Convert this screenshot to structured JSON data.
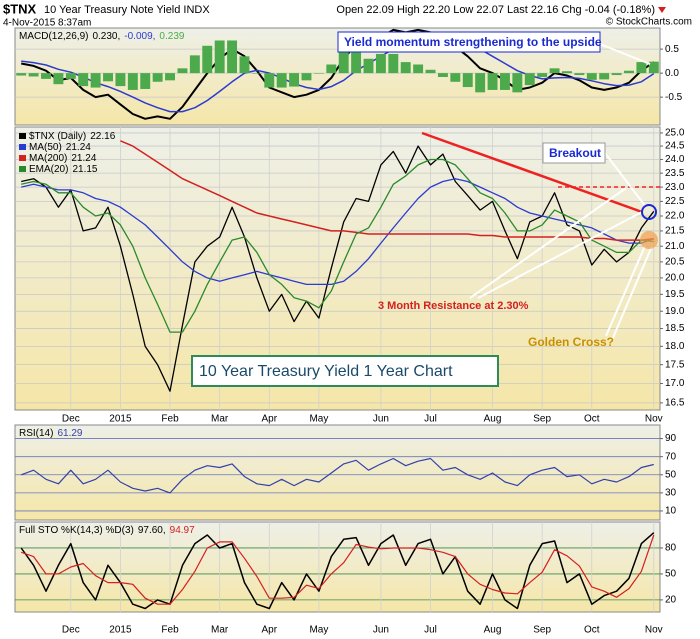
{
  "header": {
    "symbol": "$TNX",
    "name": "10 Year Treasury Note Yield INDX",
    "date": "4-Nov-2015 8:37am",
    "quote": "Open 22.09 High 22.20 Low 22.07 Last 22.16 Chg -0.04 (-0.18%)",
    "credit": "© StockCharts.com"
  },
  "chart_data": [
    {
      "type": "line",
      "title": "MACD(12,26,9)",
      "legend": [
        "0.230,",
        "-0.009,",
        "0.239"
      ],
      "annotation": "Yield momentum strengthening to the upside",
      "ylim": [
        -1.08,
        0.94
      ],
      "yticks": [
        {
          "value": -0.5,
          "label": "-0.5"
        },
        {
          "value": 0,
          "label": "0.0"
        },
        0.5
      ],
      "grid": true,
      "series": [
        {
          "color": "#000000",
          "values": [
            0.2,
            0.15,
            0.05,
            -0.15,
            -0.1,
            -0.35,
            -0.5,
            -0.45,
            -0.65,
            -0.85,
            -0.95,
            -0.9,
            -0.95,
            -0.7,
            -0.35,
            0.0,
            0.3,
            0.5,
            0.35,
            0.05,
            -0.3,
            -0.4,
            -0.5,
            -0.45,
            -0.35,
            -0.1,
            0.3,
            0.6,
            0.5,
            0.75,
            0.9,
            0.85,
            0.9,
            0.85,
            0.7,
            0.55,
            0.35,
            0.1,
            0.0,
            -0.15,
            -0.35,
            -0.3,
            -0.2,
            0.0,
            -0.05,
            -0.15,
            -0.3,
            -0.35,
            -0.3,
            -0.2,
            0.05,
            0.23
          ]
        },
        {
          "color": "#2b3bd0",
          "values": [
            0.25,
            0.22,
            0.17,
            0.08,
            0.02,
            -0.08,
            -0.2,
            -0.28,
            -0.38,
            -0.5,
            -0.62,
            -0.72,
            -0.8,
            -0.8,
            -0.72,
            -0.57,
            -0.38,
            -0.18,
            0.0,
            0.06,
            0.0,
            -0.1,
            -0.22,
            -0.3,
            -0.34,
            -0.28,
            -0.15,
            0.05,
            0.2,
            0.35,
            0.5,
            0.62,
            0.72,
            0.78,
            0.78,
            0.73,
            0.64,
            0.5,
            0.35,
            0.2,
            0.05,
            -0.05,
            -0.12,
            -0.1,
            -0.09,
            -0.11,
            -0.16,
            -0.22,
            -0.26,
            -0.25,
            -0.18,
            -0.009
          ]
        },
        {
          "color": "#4caa4c",
          "style": "bar",
          "values": [
            -0.05,
            -0.07,
            -0.12,
            -0.23,
            -0.12,
            -0.27,
            -0.3,
            -0.17,
            -0.27,
            -0.35,
            -0.33,
            -0.18,
            -0.15,
            0.1,
            0.37,
            0.57,
            0.68,
            0.68,
            0.35,
            -0.01,
            -0.3,
            -0.3,
            -0.28,
            -0.15,
            -0.01,
            0.18,
            0.45,
            0.55,
            0.3,
            0.4,
            0.4,
            0.23,
            0.18,
            0.07,
            -0.08,
            -0.18,
            -0.29,
            -0.4,
            -0.35,
            -0.35,
            -0.4,
            -0.25,
            -0.08,
            0.1,
            0.04,
            -0.04,
            -0.14,
            -0.13,
            -0.04,
            0.05,
            0.23,
            0.239
          ]
        }
      ]
    },
    {
      "type": "line",
      "log_scale": true,
      "annotations": {
        "breakout": "Breakout",
        "resistance": "3 Month Resistance at 2.30%",
        "golden_cross": "Golden Cross?",
        "caption": "10 Year Treasury Yield 1 Year Chart"
      },
      "categories": [
        null,
        null,
        null,
        null,
        "Dec",
        null,
        null,
        null,
        "2015",
        null,
        null,
        null,
        "Feb",
        null,
        null,
        null,
        "Mar",
        null,
        null,
        null,
        "Apr",
        null,
        null,
        null,
        "May",
        null,
        null,
        null,
        null,
        "Jun",
        null,
        null,
        null,
        "Jul",
        null,
        null,
        null,
        null,
        "Aug",
        null,
        null,
        null,
        "Sep",
        null,
        null,
        null,
        "Oct",
        null,
        null,
        null,
        null,
        "Nov"
      ],
      "ylim": [
        16.32,
        25.23
      ],
      "yticks": [
        16.5,
        {
          "value": 17,
          "label": "17.0"
        },
        17.5,
        {
          "value": 18,
          "label": "18.0"
        },
        18.5,
        {
          "value": 19,
          "label": "19.0"
        },
        19.5,
        {
          "value": 20,
          "label": "20.0"
        },
        20.5,
        {
          "value": 21,
          "label": "21.0"
        },
        21.5,
        {
          "value": 22,
          "label": "22.0"
        },
        22.5,
        {
          "value": 23,
          "label": "23.0"
        },
        23.5,
        {
          "value": 24,
          "label": "24.0"
        },
        24.5,
        {
          "value": 25,
          "label": "25.0"
        }
      ],
      "grid": true,
      "series": [
        {
          "name": "$TNX (Daily)",
          "color": "#000000",
          "values": [
            23.2,
            23.3,
            23.0,
            22.3,
            22.9,
            21.5,
            21.6,
            22.3,
            21.0,
            19.5,
            18.0,
            17.5,
            16.8,
            18.6,
            20.5,
            21.0,
            21.3,
            22.3,
            21.3,
            20.0,
            19.0,
            19.5,
            18.7,
            19.3,
            18.8,
            20.3,
            21.8,
            22.6,
            22.5,
            23.8,
            24.3,
            23.5,
            24.5,
            23.8,
            24.2,
            23.2,
            22.7,
            22.2,
            22.5,
            21.5,
            20.6,
            21.8,
            22.0,
            22.8,
            21.7,
            21.5,
            20.4,
            20.9,
            20.5,
            20.8,
            21.6,
            22.16
          ]
        },
        {
          "name": "MA(50)",
          "color": "#2b3bd0",
          "values": [
            23.0,
            23.1,
            23.0,
            22.9,
            22.9,
            22.8,
            22.6,
            22.5,
            22.3,
            22.0,
            21.7,
            21.3,
            20.9,
            20.5,
            20.2,
            20.0,
            19.9,
            20.0,
            20.1,
            20.2,
            20.1,
            20.0,
            19.9,
            19.8,
            19.8,
            19.8,
            19.9,
            20.2,
            20.6,
            21.1,
            21.6,
            22.1,
            22.6,
            23.0,
            23.2,
            23.3,
            23.2,
            23.0,
            22.8,
            22.6,
            22.3,
            22.1,
            22.0,
            21.9,
            21.8,
            21.7,
            21.6,
            21.4,
            21.2,
            21.1,
            21.1,
            21.24
          ]
        },
        {
          "name": "MA(200)",
          "color": "#d42020",
          "values": [
            null,
            null,
            null,
            null,
            null,
            null,
            null,
            null,
            24.7,
            24.5,
            24.2,
            23.9,
            23.6,
            23.3,
            23.1,
            22.9,
            22.7,
            22.5,
            22.3,
            22.1,
            22.0,
            21.9,
            21.8,
            21.7,
            21.6,
            21.5,
            21.5,
            21.45,
            21.4,
            21.4,
            21.4,
            21.4,
            21.4,
            21.4,
            21.4,
            21.4,
            21.4,
            21.35,
            21.35,
            21.3,
            21.3,
            21.3,
            21.3,
            21.3,
            21.3,
            21.3,
            21.25,
            21.25,
            21.2,
            21.2,
            21.2,
            21.24
          ]
        },
        {
          "name": "EMA(20)",
          "color": "#2a8a2a",
          "values": [
            23.1,
            23.2,
            23.1,
            22.8,
            22.8,
            22.3,
            22.0,
            22.1,
            21.7,
            21.0,
            20.0,
            19.2,
            18.4,
            18.4,
            19.0,
            19.8,
            20.5,
            21.2,
            21.3,
            20.8,
            20.1,
            19.8,
            19.4,
            19.3,
            19.1,
            19.6,
            20.5,
            21.4,
            21.6,
            22.3,
            23.1,
            23.4,
            23.8,
            24.0,
            24.0,
            23.8,
            23.3,
            22.8,
            22.6,
            22.1,
            21.5,
            21.5,
            21.7,
            22.2,
            22.0,
            21.8,
            21.2,
            21.0,
            20.8,
            20.8,
            21.2,
            21.15
          ]
        }
      ]
    },
    {
      "type": "line",
      "title": "RSI(14)",
      "legend": [
        "61.29"
      ],
      "ylim": [
        0,
        105
      ],
      "yticks": [
        10,
        30,
        50,
        70,
        90
      ],
      "grid": true,
      "grid_color": "#6677bb",
      "series": [
        {
          "color": "#3340aa",
          "values": [
            50,
            55,
            45,
            40,
            55,
            40,
            45,
            55,
            42,
            35,
            32,
            35,
            30,
            45,
            55,
            60,
            58,
            62,
            48,
            40,
            38,
            45,
            38,
            45,
            42,
            52,
            62,
            66,
            55,
            62,
            68,
            60,
            65,
            68,
            55,
            58,
            50,
            45,
            52,
            42,
            38,
            50,
            55,
            58,
            48,
            50,
            40,
            45,
            42,
            48,
            58,
            61.29
          ]
        }
      ]
    },
    {
      "type": "line",
      "title": "Full STO %K(14,3) %D(3)",
      "legend": [
        "97.60,",
        "94.97"
      ],
      "categories": [
        null,
        null,
        null,
        null,
        "Dec",
        null,
        null,
        null,
        "2015",
        null,
        null,
        null,
        "Feb",
        null,
        null,
        null,
        "Mar",
        null,
        null,
        null,
        "Apr",
        null,
        null,
        null,
        "May",
        null,
        null,
        null,
        null,
        "Jun",
        null,
        null,
        null,
        "Jul",
        null,
        null,
        null,
        null,
        "Aug",
        null,
        null,
        null,
        "Sep",
        null,
        null,
        null,
        "Oct",
        null,
        null,
        null,
        null,
        "Nov"
      ],
      "ylim": [
        6,
        110
      ],
      "yticks": [
        20,
        50,
        80
      ],
      "grid": true,
      "grid_color": "#3a8a4a",
      "series": [
        {
          "color": "#000000",
          "values": [
            80,
            60,
            30,
            60,
            85,
            40,
            20,
            60,
            40,
            15,
            10,
            20,
            15,
            60,
            85,
            95,
            80,
            85,
            40,
            15,
            10,
            40,
            20,
            50,
            30,
            70,
            90,
            92,
            60,
            85,
            95,
            60,
            85,
            90,
            50,
            70,
            30,
            15,
            50,
            20,
            10,
            60,
            85,
            88,
            40,
            50,
            15,
            25,
            30,
            45,
            85,
            97.6
          ]
        },
        {
          "color": "#d42020",
          "values": [
            75,
            70,
            50,
            50,
            58,
            62,
            48,
            40,
            40,
            38,
            22,
            15,
            15,
            32,
            53,
            80,
            87,
            87,
            68,
            47,
            22,
            22,
            23,
            37,
            33,
            50,
            63,
            84,
            81,
            79,
            80,
            80,
            80,
            78,
            75,
            70,
            50,
            38,
            32,
            28,
            27,
            40,
            52,
            78,
            71,
            59,
            35,
            30,
            23,
            33,
            53,
            94.97
          ]
        }
      ]
    }
  ]
}
